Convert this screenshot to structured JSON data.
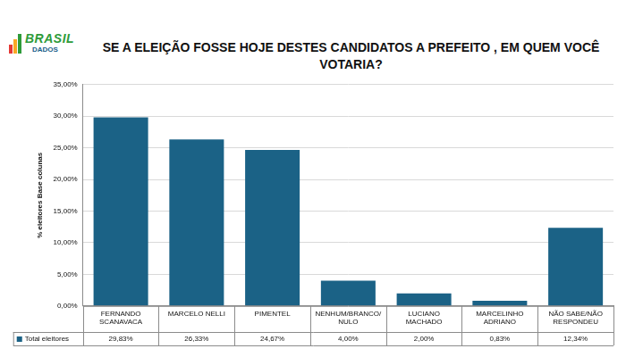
{
  "chart_data": {
    "type": "bar",
    "title": "SE A ELEIÇÃO FOSSE HOJE DESTES CANDIDATOS A PREFEITO , EM QUEM VOCÊ VOTARIA?",
    "y_label": "% eleitores Base colunas",
    "categories": [
      "FERNANDO SCANAVACA",
      "MARCELO NELLI",
      "PIMENTEL",
      "NENHUM/BRANCO/NULO",
      "LUCIANO MACHADO",
      "MARCELINHO ADRIANO",
      "NÃO SABE/NÃO RESPONDEU"
    ],
    "series": [
      {
        "name": "Total eleitores",
        "color": "#1b6286",
        "values": [
          29.83,
          26.33,
          24.67,
          4.0,
          2.0,
          0.83,
          12.34
        ],
        "value_labels": [
          "29,83%",
          "26,33%",
          "24,67%",
          "4,00%",
          "2,00%",
          "0,83%",
          "12,34%"
        ]
      }
    ],
    "ylim": [
      0,
      35
    ],
    "yticks": [
      {
        "value": 0,
        "label": "0,00%"
      },
      {
        "value": 5,
        "label": "5,00%"
      },
      {
        "value": 10,
        "label": "10,00%"
      },
      {
        "value": 15,
        "label": "15,00%"
      },
      {
        "value": 20,
        "label": "20,00%"
      },
      {
        "value": 25,
        "label": "25,00%"
      },
      {
        "value": 30,
        "label": "30,00%"
      },
      {
        "value": 35,
        "label": "35,00%"
      }
    ],
    "grid": true
  },
  "logo_text": [
    "BRASIL",
    "DADOS"
  ]
}
